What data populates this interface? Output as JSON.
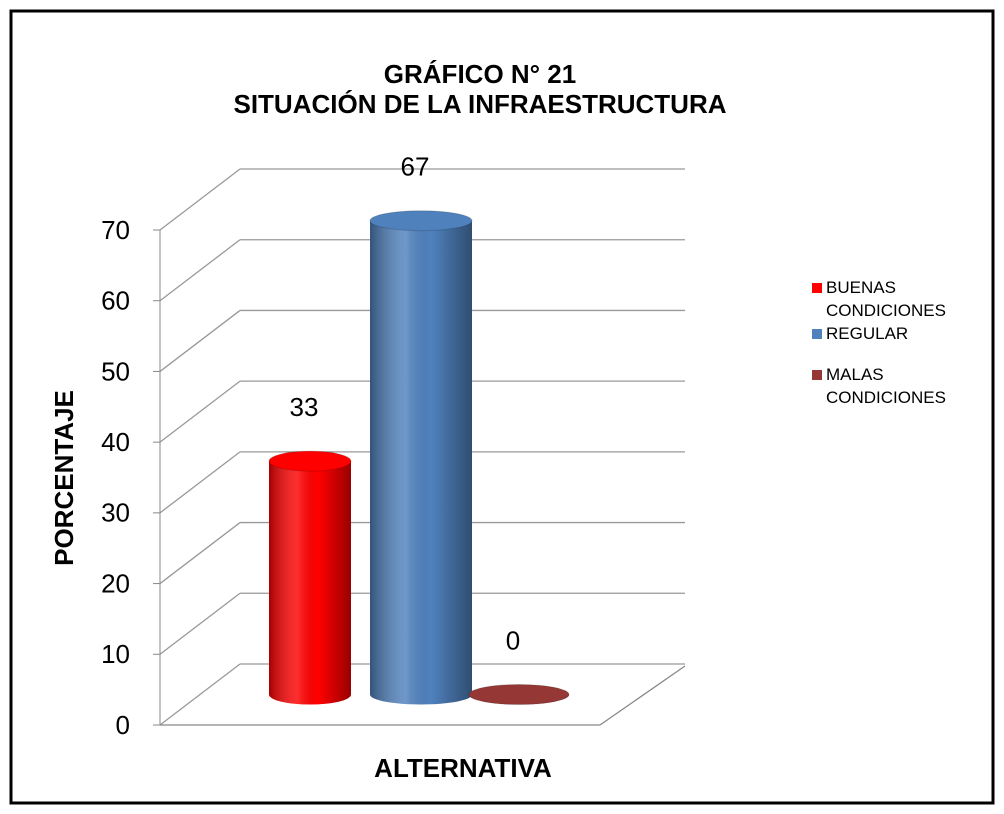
{
  "chart_data": {
    "type": "bar3d",
    "title": "GRÁFICO N° 21",
    "subtitle": "SITUACIÓN DE LA INFRAESTRUCTURA",
    "x_label": "ALTERNATIVA",
    "y_label": "PORCENTAJE",
    "series": [
      {
        "name": "BUENAS CONDICIONES",
        "color": "#ff0000",
        "values": [
          33
        ]
      },
      {
        "name": "REGULAR",
        "color": "#4f81bd",
        "values": [
          67
        ]
      },
      {
        "name": "MALAS CONDICIONES",
        "color": "#953735",
        "values": [
          0
        ]
      }
    ],
    "ylim": [
      0,
      70
    ],
    "yticks": [
      0,
      10,
      20,
      30,
      40,
      50,
      60,
      70
    ],
    "grid": true,
    "legend": "right"
  }
}
